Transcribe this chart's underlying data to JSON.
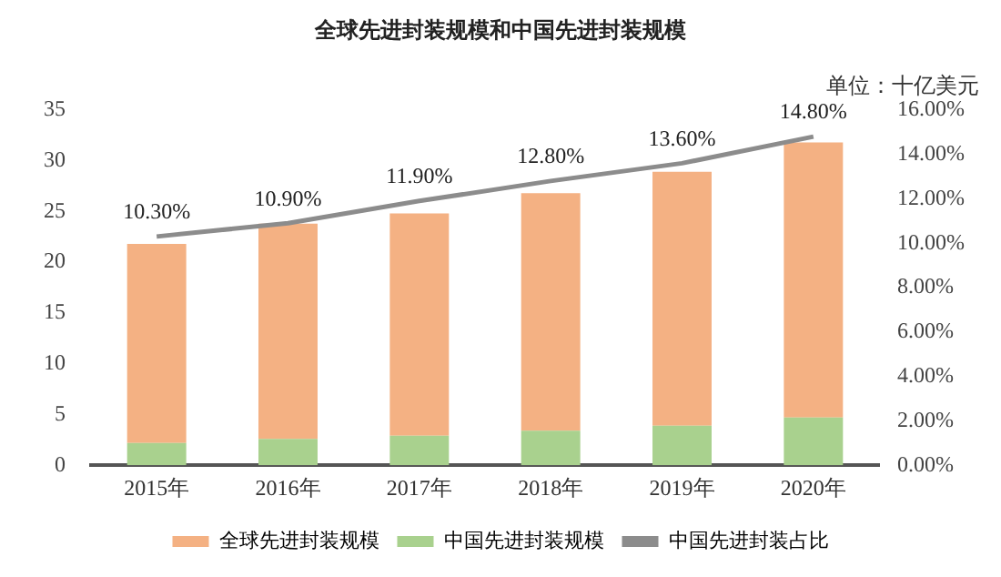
{
  "chart_data": {
    "type": "bar",
    "title": "全球先进封装规模和中国先进封装规模",
    "annotations": [
      "单位：十亿美元"
    ],
    "categories": [
      "2015年",
      "2016年",
      "2017年",
      "2018年",
      "2019年",
      "2020年"
    ],
    "stacked": true,
    "series": [
      {
        "name": "中国先进封装规模",
        "color": "#a9d18e",
        "values": [
          2.2,
          2.6,
          2.9,
          3.4,
          3.9,
          4.7
        ]
      },
      {
        "name": "全球先进封装规模",
        "color": "#f4b183",
        "values": [
          19.6,
          21.2,
          21.9,
          23.4,
          25.0,
          27.1
        ]
      },
      {
        "name": "中国先进封装占比",
        "type": "line",
        "axis": "y2",
        "color": "#8c8c8c",
        "values": [
          10.3,
          10.9,
          11.9,
          12.8,
          13.6,
          14.8
        ],
        "value_labels": [
          "10.30%",
          "10.90%",
          "11.90%",
          "12.80%",
          "13.60%",
          "14.80%"
        ]
      }
    ],
    "ylim": [
      0,
      35
    ],
    "yticks": [
      0,
      5,
      10,
      15,
      20,
      25,
      30,
      35
    ],
    "y2lim": [
      0,
      16
    ],
    "y2ticks": [
      {
        "value": 0,
        "label": "0.00%"
      },
      {
        "value": 2,
        "label": "2.00%"
      },
      {
        "value": 4,
        "label": "4.00%"
      },
      {
        "value": 6,
        "label": "6.00%"
      },
      {
        "value": 8,
        "label": "8.00%"
      },
      {
        "value": 10,
        "label": "10.00%"
      },
      {
        "value": 12,
        "label": "12.00%"
      },
      {
        "value": 14,
        "label": "14.00%"
      },
      {
        "value": 16,
        "label": "16.00%"
      }
    ],
    "grid": false,
    "legend": "bottom",
    "marker": "none"
  }
}
